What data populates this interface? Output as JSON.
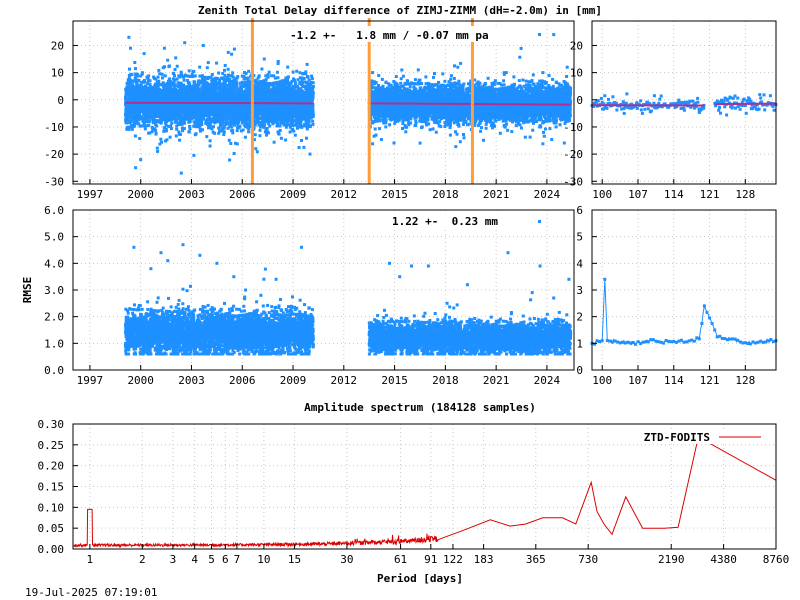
{
  "colors": {
    "points": "#1e90ff",
    "trend": "#b0308f",
    "events": "#ff9d3a",
    "spectrum": "#dd0000",
    "frame": "#000000",
    "grid": "#c8c8c8"
  },
  "footer": {
    "timestamp": "19-Jul-2025 07:19:01"
  },
  "chart_data": [
    {
      "id": "ztd-difference",
      "type": "scatter",
      "title": "Zenith Total Delay difference of ZIMJ-ZIMM (dH=-2.0m) in [mm]",
      "annotation": "-1.2 +-   1.8 mm / -0.07 mm pa",
      "xlabel": "",
      "ylabel": "",
      "xlim": [
        1996,
        2025.6
      ],
      "ylim": [
        -31,
        29
      ],
      "xticks": [
        1997,
        2000,
        2003,
        2006,
        2009,
        2012,
        2015,
        2018,
        2021,
        2024
      ],
      "yticks": [
        -30,
        -20,
        -10,
        0,
        10,
        20
      ],
      "grid": true,
      "segments": [
        {
          "start": 1999.1,
          "end": 2010.2,
          "center": -1.2,
          "spread": 4.0
        },
        {
          "start": 2013.5,
          "end": 2025.4,
          "center": -1.5,
          "spread": 3.0
        }
      ],
      "trend": [
        [
          1999.1,
          -1.1
        ],
        [
          2010.2,
          -1.3
        ],
        [
          2013.5,
          -1.3
        ],
        [
          2025.4,
          -1.8
        ]
      ],
      "breaks": [
        2006.6,
        2013.5,
        2019.6
      ],
      "outliers": [
        [
          1999.3,
          23
        ],
        [
          1999.4,
          19
        ],
        [
          2000.2,
          17
        ],
        [
          2001.4,
          19
        ],
        [
          2002.6,
          21
        ],
        [
          2003.7,
          20
        ],
        [
          2000.0,
          -22
        ],
        [
          1999.7,
          -25
        ],
        [
          2002.4,
          -27
        ],
        [
          2001.0,
          -19
        ],
        [
          2004.1,
          -17
        ],
        [
          2005.6,
          -16
        ],
        [
          2006.8,
          -18
        ],
        [
          2007.3,
          15
        ],
        [
          2009.5,
          -15
        ],
        [
          2010.0,
          -20
        ],
        [
          2017.1,
          -11
        ],
        [
          2018.3,
          -13
        ],
        [
          2019.1,
          -14
        ],
        [
          2016.4,
          11
        ],
        [
          2013.9,
          -13
        ],
        [
          2021.6,
          10
        ],
        [
          2023.8,
          -12
        ],
        [
          2025.2,
          12
        ],
        [
          2024.4,
          24
        ]
      ]
    },
    {
      "id": "ztd-difference-recent",
      "type": "scatter",
      "title": "",
      "xlabel": "",
      "ylabel": "",
      "xlim": [
        98,
        134
      ],
      "ylim": [
        -31,
        29
      ],
      "xticks": [
        100,
        107,
        114,
        121,
        128
      ],
      "yticks": [
        -30,
        -20,
        -10,
        0,
        10,
        20
      ],
      "grid": true,
      "segments": [
        {
          "start": 98,
          "end": 120,
          "center": -2.0,
          "spread": 1.0
        },
        {
          "start": 122,
          "end": 134,
          "center": -1.5,
          "spread": 1.2
        }
      ],
      "trend": [
        [
          98,
          -2.0
        ],
        [
          120,
          -2.1
        ],
        [
          122,
          -1.6
        ],
        [
          134,
          -1.4
        ]
      ],
      "breaks": [],
      "outliers": [
        [
          100.5,
          1.5
        ],
        [
          104.3,
          -5.0
        ],
        [
          110.2,
          1.5
        ],
        [
          119.0,
          -4.5
        ],
        [
          125.0,
          1.0
        ]
      ]
    },
    {
      "id": "ztd-rmse",
      "type": "scatter",
      "title": "",
      "annotation": "1.22 +-  0.23 mm",
      "xlabel": "",
      "ylabel": "RMSE",
      "xlim": [
        1996,
        2025.6
      ],
      "ylim": [
        0,
        6
      ],
      "xticks": [
        1997,
        2000,
        2003,
        2006,
        2009,
        2012,
        2015,
        2018,
        2021,
        2024
      ],
      "yticks": [
        0.0,
        1.0,
        2.0,
        3.0,
        4.0,
        5.0,
        6.0
      ],
      "ytickdecimals": 1,
      "grid": true,
      "segments": [
        {
          "start": 1999.1,
          "end": 2010.2,
          "center": 1.4,
          "spread": 0.35
        },
        {
          "start": 2013.5,
          "end": 2025.4,
          "center": 1.2,
          "spread": 0.25
        }
      ],
      "outliers": [
        [
          1999.6,
          4.6
        ],
        [
          2000.6,
          3.8
        ],
        [
          2001.2,
          4.4
        ],
        [
          2001.6,
          4.1
        ],
        [
          2002.5,
          4.7
        ],
        [
          2003.5,
          4.3
        ],
        [
          2004.5,
          4.0
        ],
        [
          2005.5,
          3.5
        ],
        [
          2006.2,
          3.0
        ],
        [
          2007.1,
          2.8
        ],
        [
          2008.0,
          3.4
        ],
        [
          2009.5,
          4.6
        ],
        [
          2014.7,
          4.0
        ],
        [
          2016.0,
          3.9
        ],
        [
          2017.0,
          3.9
        ],
        [
          2019.3,
          3.2
        ],
        [
          2021.7,
          4.4
        ],
        [
          2023.6,
          3.9
        ],
        [
          2025.3,
          3.4
        ],
        [
          2024.4,
          2.7
        ],
        [
          2015.3,
          3.5
        ],
        [
          2018.1,
          2.5
        ]
      ]
    },
    {
      "id": "ztd-rmse-recent",
      "type": "line",
      "title": "",
      "xlabel": "",
      "ylabel": "",
      "xlim": [
        98,
        134
      ],
      "ylim": [
        0,
        6
      ],
      "xticks": [
        100,
        107,
        114,
        121,
        128
      ],
      "yticks": [
        0.0,
        1.0,
        2.0,
        3.0,
        4.0,
        5.0,
        6.0
      ],
      "grid": true,
      "series": [
        {
          "x": [
            98,
            99,
            100,
            100.5,
            101,
            102,
            104,
            106,
            108,
            110,
            112,
            114,
            116,
            118,
            119,
            120,
            121,
            122,
            122.5,
            124,
            126,
            128,
            130,
            132,
            134
          ],
          "y": [
            1.0,
            1.05,
            1.1,
            3.4,
            1.1,
            1.1,
            1.05,
            1.0,
            1.05,
            1.1,
            1.05,
            1.1,
            1.05,
            1.1,
            1.2,
            2.4,
            2.0,
            1.5,
            1.3,
            1.2,
            1.1,
            1.0,
            1.05,
            1.1,
            1.1
          ]
        }
      ]
    },
    {
      "id": "amplitude-spectrum",
      "type": "line",
      "title": "Amplitude spectrum (184128 samples)",
      "xlabel": "Period [days]",
      "ylabel": "",
      "xscale": "log",
      "xlim": [
        0.8,
        8760
      ],
      "ylim": [
        0,
        0.3
      ],
      "xticks": [
        1,
        2,
        3,
        4,
        5,
        6,
        7,
        10,
        15,
        30,
        61,
        91,
        122,
        183,
        365,
        730,
        2190,
        4380,
        8760
      ],
      "yticks": [
        0.0,
        0.05,
        0.1,
        0.15,
        0.2,
        0.25,
        0.3
      ],
      "ytickdecimals": 2,
      "grid": true,
      "legend": "top-right",
      "series": [
        {
          "name": "ZTD-FODITS",
          "peaks": [
            [
              1.0,
              0.095
            ],
            [
              40,
              0.025
            ],
            [
              70,
              0.03
            ],
            [
              100,
              0.035
            ],
            [
              140,
              0.045
            ],
            [
              200,
              0.07
            ],
            [
              260,
              0.055
            ],
            [
              320,
              0.06
            ],
            [
              400,
              0.075
            ],
            [
              520,
              0.075
            ],
            [
              620,
              0.06
            ],
            [
              760,
              0.16
            ],
            [
              820,
              0.09
            ],
            [
              900,
              0.06
            ],
            [
              1000,
              0.035
            ],
            [
              1200,
              0.125
            ],
            [
              1500,
              0.05
            ],
            [
              2000,
              0.05
            ],
            [
              2400,
              0.052
            ],
            [
              3100,
              0.26
            ],
            [
              3600,
              0.255
            ],
            [
              8760,
              0.165
            ]
          ]
        }
      ]
    }
  ]
}
